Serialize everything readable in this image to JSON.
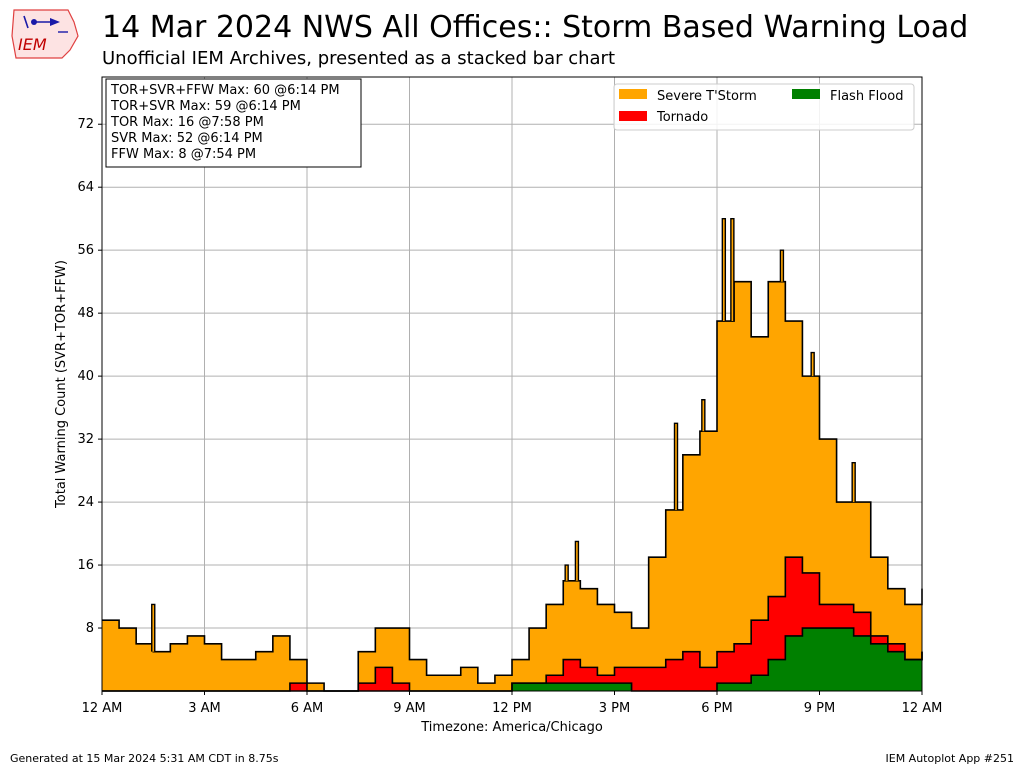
{
  "header": {
    "title": "14 Mar 2024 NWS All Offices:: Storm Based Warning Load",
    "subtitle": "Unofficial IEM Archives, presented as a stacked bar chart",
    "logo_text": "IEM"
  },
  "footer": {
    "generated": "Generated at 15 Mar 2024 5:31 AM CDT in 8.75s",
    "app": "IEM Autoplot App #251"
  },
  "stats_box": [
    "TOR+SVR+FFW Max: 60 @6:14 PM",
    "TOR+SVR Max: 59 @6:14 PM",
    "TOR Max: 16 @7:58 PM",
    "SVR Max: 52 @6:14 PM",
    "FFW Max: 8 @7:54 PM"
  ],
  "colors": {
    "svr": "#ffa500",
    "tor": "#ff0000",
    "ffw": "#008000",
    "outline": "#000000",
    "grid": "#b0b0b0"
  },
  "chart_data": {
    "type": "area",
    "xlabel": "Timezone: America/Chicago",
    "ylabel": "Total Warning Count (SVR+TOR+FFW)",
    "xlim": [
      0,
      24
    ],
    "ylim": [
      0,
      78
    ],
    "xticks": [
      0,
      3,
      6,
      9,
      12,
      15,
      18,
      21,
      24
    ],
    "xtick_labels": [
      "12 AM",
      "3 AM",
      "6 AM",
      "9 AM",
      "12 PM",
      "3 PM",
      "6 PM",
      "9 PM",
      "12 AM"
    ],
    "yticks": [
      8,
      16,
      24,
      32,
      40,
      48,
      56,
      64,
      72
    ],
    "grid": true,
    "legend_position": "top-right",
    "legend": [
      {
        "name": "Severe T'Storm",
        "key": "svr"
      },
      {
        "name": "Flash Flood",
        "key": "ffw"
      },
      {
        "name": "Tornado",
        "key": "tor"
      }
    ],
    "hours": [
      0,
      0.5,
      1,
      1.5,
      2,
      2.5,
      3,
      3.5,
      4,
      4.5,
      5,
      5.5,
      6,
      6.5,
      7,
      7.5,
      8,
      8.5,
      9,
      9.5,
      10,
      10.5,
      11,
      11.5,
      12,
      12.5,
      13,
      13.5,
      14,
      14.5,
      15,
      15.5,
      16,
      16.5,
      17,
      17.5,
      18,
      18.5,
      19,
      19.5,
      20,
      20.5,
      21,
      21.5,
      22,
      22.5,
      23,
      23.5,
      24
    ],
    "series": [
      {
        "name": "Flash Flood",
        "key": "ffw",
        "values": [
          0,
          0,
          0,
          0,
          0,
          0,
          0,
          0,
          0,
          0,
          0,
          0,
          0,
          0,
          0,
          0,
          0,
          0,
          0,
          0,
          0,
          0,
          0,
          0,
          1,
          1,
          1,
          1,
          1,
          1,
          1,
          0,
          0,
          0,
          0,
          0,
          1,
          1,
          2,
          4,
          7,
          8,
          8,
          8,
          7,
          6,
          5,
          4,
          5
        ]
      },
      {
        "name": "Tornado",
        "key": "tor",
        "values": [
          0,
          0,
          0,
          0,
          0,
          0,
          0,
          0,
          0,
          0,
          0,
          1,
          0,
          0,
          0,
          1,
          3,
          1,
          0,
          0,
          0,
          0,
          0,
          0,
          0,
          0,
          1,
          3,
          2,
          1,
          2,
          3,
          3,
          4,
          5,
          3,
          4,
          5,
          7,
          8,
          10,
          7,
          3,
          3,
          3,
          1,
          1,
          0,
          0
        ]
      },
      {
        "name": "Severe T'Storm",
        "key": "svr",
        "values": [
          9,
          8,
          6,
          5,
          6,
          7,
          6,
          4,
          4,
          5,
          7,
          3,
          1,
          0,
          0,
          4,
          5,
          7,
          4,
          2,
          2,
          3,
          1,
          2,
          3,
          7,
          9,
          10,
          10,
          9,
          7,
          5,
          14,
          19,
          25,
          30,
          42,
          46,
          36,
          40,
          30,
          25,
          21,
          13,
          14,
          10,
          7,
          7,
          8
        ]
      }
    ],
    "hours_labels_note": "",
    "outline_peaks": [
      {
        "hour": 1.5,
        "value": 11
      },
      {
        "hour": 13.6,
        "value": 16
      },
      {
        "hour": 13.9,
        "value": 19
      },
      {
        "hour": 16.8,
        "value": 34
      },
      {
        "hour": 17.6,
        "value": 37
      },
      {
        "hour": 18.2,
        "value": 60
      },
      {
        "hour": 18.45,
        "value": 60
      },
      {
        "hour": 19.9,
        "value": 56
      },
      {
        "hour": 20.8,
        "value": 43
      },
      {
        "hour": 22.0,
        "value": 29
      }
    ]
  }
}
